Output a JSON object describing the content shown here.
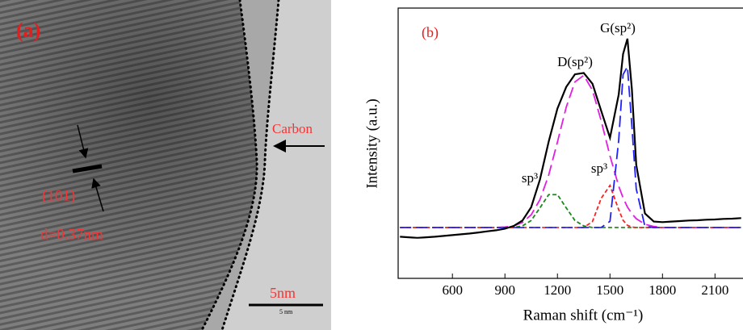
{
  "panel_a": {
    "label": "(a)",
    "carbon": "Carbon",
    "plane": "(101)",
    "spacing": "d=0.37nm",
    "scale": "5nm",
    "scale_small": "5 nm"
  },
  "chart_data": {
    "type": "line",
    "xlabel": "Raman shift (cm⁻¹)",
    "ylabel": "Intensity (a.u.)",
    "annotations": [
      "(b)",
      "D(sp²)",
      "G(sp²)",
      "sp³",
      "sp³"
    ],
    "xlim": [
      290,
      2260
    ],
    "xticks": [
      600,
      900,
      1200,
      1500,
      1800,
      2100
    ],
    "ylim": [
      0,
      100
    ],
    "x": [
      300,
      350,
      400,
      450,
      500,
      550,
      600,
      650,
      700,
      750,
      800,
      850,
      900,
      950,
      1000,
      1050,
      1100,
      1150,
      1200,
      1250,
      1300,
      1350,
      1400,
      1450,
      1500,
      1550,
      1575,
      1600,
      1625,
      1650,
      1700,
      1750,
      1800,
      1850,
      1900,
      1950,
      2000,
      2050,
      2100,
      2150,
      2200,
      2250
    ],
    "series": [
      {
        "color": "#000000",
        "style": "solid",
        "values": [
          15.4,
          15.2,
          15.0,
          15.2,
          15.4,
          15.7,
          16.0,
          16.3,
          16.6,
          17.0,
          17.4,
          17.8,
          18.4,
          19.4,
          21.4,
          26.3,
          36.6,
          50.6,
          62.8,
          70.8,
          75.5,
          76,
          72,
          62,
          52,
          68,
          83,
          88.7,
          70,
          42,
          24,
          21,
          20.8,
          21,
          21.2,
          21.4,
          21.5,
          21.7,
          21.8,
          22,
          22.1,
          22.3
        ]
      },
      {
        "color": "#1a8a1a",
        "style": "dotted",
        "values": [
          18.8,
          18.8,
          18.8,
          18.8,
          18.8,
          18.8,
          18.8,
          18.8,
          18.8,
          18.8,
          18.8,
          18.8,
          18.8,
          18.8,
          19.4,
          21.4,
          26.1,
          31,
          31,
          26.1,
          21.4,
          19.4,
          18.8,
          18.8,
          18.8,
          18.8,
          18.8,
          18.8,
          18.8,
          18.8,
          18.8,
          18.8,
          18.8,
          18.8,
          18.8,
          18.8,
          18.8,
          18.8,
          18.8,
          18.8,
          18.8,
          18.8
        ]
      },
      {
        "color": "#e020e0",
        "style": "dashed",
        "values": [
          18.8,
          18.8,
          18.8,
          18.8,
          18.8,
          18.8,
          18.8,
          18.8,
          18.8,
          18.8,
          18.8,
          18.8,
          19.0,
          19.4,
          20.7,
          23.5,
          29.1,
          38.2,
          50.4,
          63.3,
          72.7,
          75.1,
          69.6,
          58.3,
          45.3,
          34.1,
          29.8,
          26.4,
          23.9,
          22.1,
          20.0,
          19.2,
          18.8,
          18.8,
          18.8,
          18.8,
          18.8,
          18.8,
          18.8,
          18.8,
          18.8,
          18.8
        ]
      },
      {
        "color": "#ff2020",
        "style": "dotted",
        "values": [
          18.8,
          18.8,
          18.8,
          18.8,
          18.8,
          18.8,
          18.8,
          18.8,
          18.8,
          18.8,
          18.8,
          18.8,
          18.8,
          18.8,
          18.8,
          18.8,
          18.8,
          18.8,
          18.8,
          18.8,
          18.8,
          18.8,
          21.0,
          29.6,
          34.4,
          25.4,
          21.5,
          19.6,
          19.0,
          18.8,
          18.8,
          18.8,
          18.8,
          18.8,
          18.8,
          18.8,
          18.8,
          18.8,
          18.8,
          18.8,
          18.8,
          18.8
        ]
      },
      {
        "color": "#2020ff",
        "style": "dashed",
        "values": [
          18.8,
          18.8,
          18.8,
          18.8,
          18.8,
          18.8,
          18.8,
          18.8,
          18.8,
          18.8,
          18.8,
          18.8,
          18.8,
          18.8,
          18.8,
          18.8,
          18.8,
          18.8,
          18.8,
          18.8,
          18.8,
          18.8,
          18.8,
          18.8,
          21.1,
          51.1,
          75.4,
          78.3,
          56.4,
          33.1,
          19.2,
          18.8,
          18.8,
          18.8,
          18.8,
          18.8,
          18.8,
          18.8,
          18.8,
          18.8,
          18.8,
          18.8
        ]
      }
    ]
  }
}
